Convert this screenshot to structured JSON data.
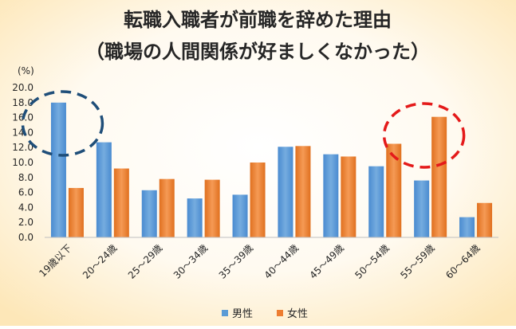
{
  "chart_data": {
    "type": "bar",
    "title": "転職入職者が前職を辞めた理由",
    "subtitle": "（職場の人間関係が好ましくなかった）",
    "ylabel": "(%)",
    "xlabel": "",
    "ylim": [
      0,
      20
    ],
    "yticks": [
      "0.0",
      "2.0",
      "4.0",
      "6.0",
      "8.0",
      "10.0",
      "12.0",
      "14.0",
      "16.0",
      "18.0",
      "20.0"
    ],
    "grid": false,
    "legend": "bottom",
    "categories": [
      "19歳以下",
      "20～24歳",
      "25～29歳",
      "30～34歳",
      "35～39歳",
      "40～44歳",
      "45～49歳",
      "50～54歳",
      "55～59歳",
      "60～64歳"
    ],
    "series": [
      {
        "name": "男性",
        "color": "#5b9bd5",
        "values": [
          18.0,
          12.7,
          6.3,
          5.2,
          5.7,
          12.1,
          11.1,
          9.5,
          7.6,
          2.7
        ]
      },
      {
        "name": "女性",
        "color": "#ed7d31",
        "values": [
          6.6,
          9.2,
          7.8,
          7.7,
          10.0,
          12.2,
          10.8,
          12.5,
          16.1,
          4.6
        ]
      }
    ],
    "annotations": [
      {
        "type": "dashed-ellipse",
        "color": "#1f4e79",
        "category": "19歳以下"
      },
      {
        "type": "dashed-ellipse",
        "color": "#e41a1a",
        "category": "55～59歳"
      }
    ]
  }
}
